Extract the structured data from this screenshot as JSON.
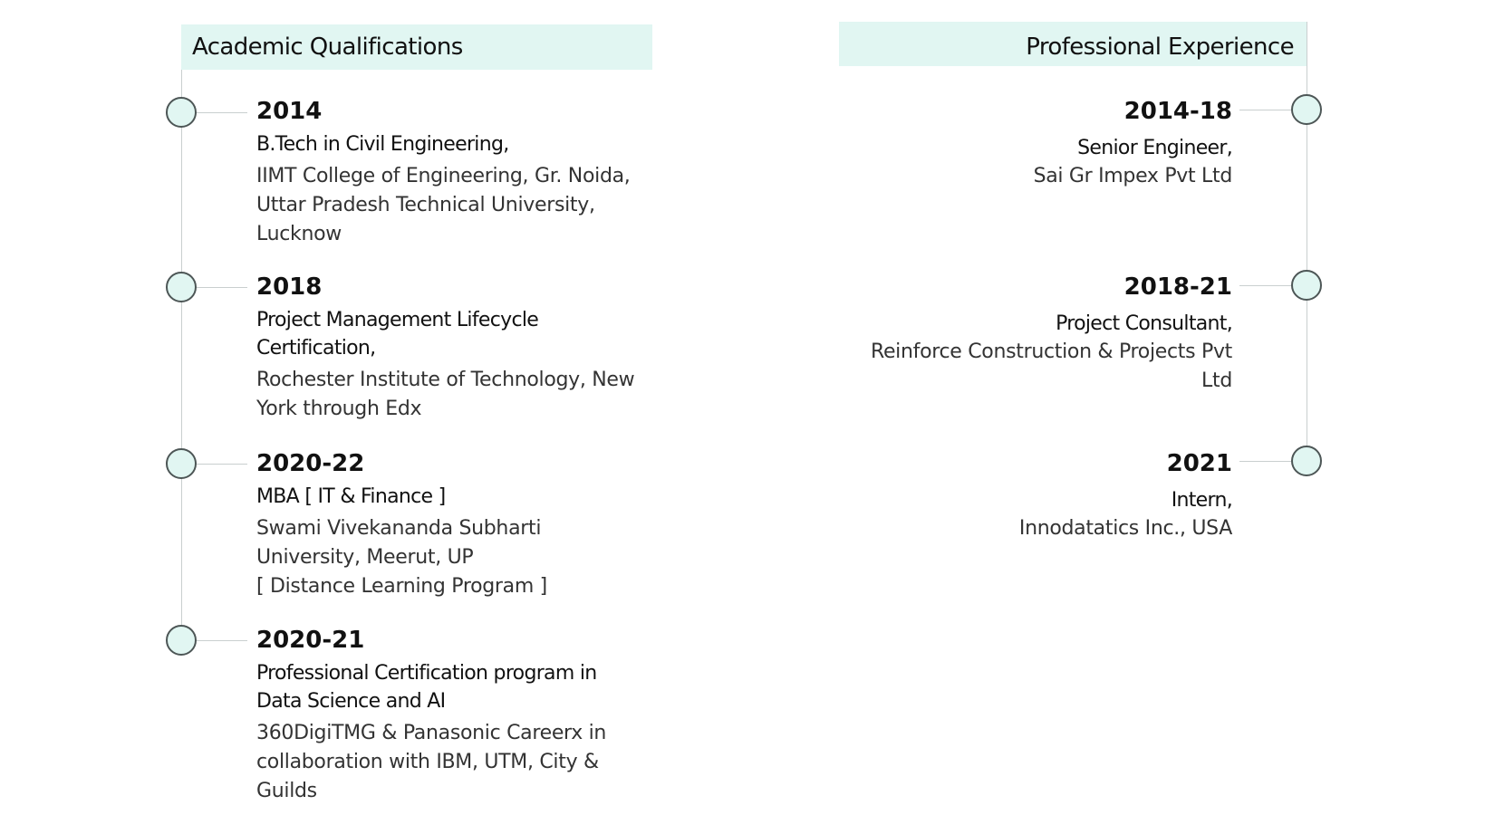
{
  "academic": {
    "heading": "Academic Qualifications",
    "entries": [
      {
        "year": "2014",
        "title": "B.Tech in Civil Engineering,",
        "desc": "IIMT College of Engineering, Gr. Noida,\nUttar Pradesh Technical University,\nLucknow"
      },
      {
        "year": "2018",
        "title": "Project Management Lifecycle Certification,",
        "desc": "Rochester Institute of Technology, New\nYork through Edx"
      },
      {
        "year": "2020-22",
        "title": "MBA [  IT & Finance  ]",
        "desc": "Swami Vivekananda Subharti\nUniversity, Meerut, UP\n[ Distance Learning Program ]"
      },
      {
        "year": "2020-21",
        "title": "Professional Certification program in Data Science and AI",
        "desc": "360DigiTMG & Panasonic Careerx in\ncollaboration with IBM, UTM, City &\nGuilds"
      }
    ]
  },
  "experience": {
    "heading": "Professional Experience",
    "entries": [
      {
        "year": "2014-18",
        "title": "Senior Engineer,",
        "desc": "Sai Gr Impex Pvt Ltd"
      },
      {
        "year": "2018-21",
        "title": "Project Consultant,",
        "desc": "Reinforce Construction & Projects Pvt\nLtd"
      },
      {
        "year": "2021",
        "title": "Intern,",
        "desc": "Innodatatics Inc., USA"
      }
    ]
  },
  "colors": {
    "accent_fill": "#e1f6f2",
    "node_border": "#4d5656",
    "line": "#c9cfcf"
  }
}
